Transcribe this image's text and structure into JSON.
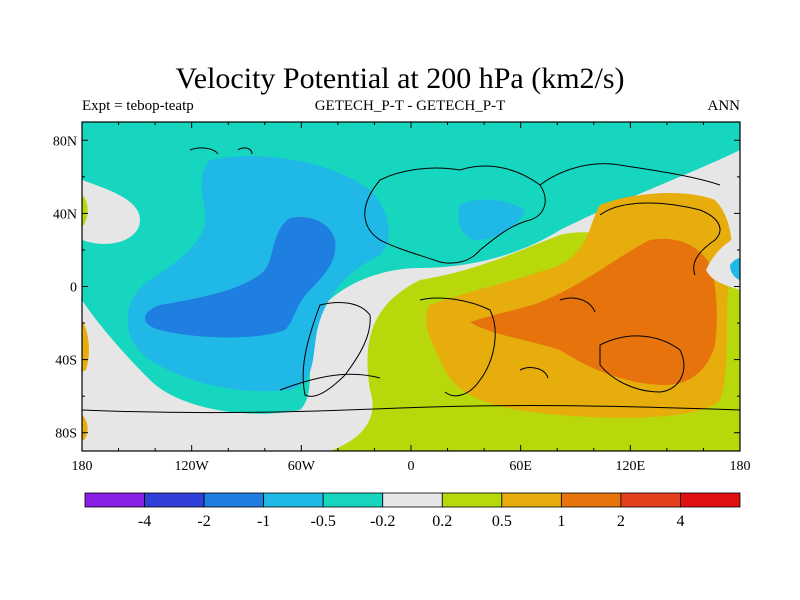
{
  "chart_data": {
    "type": "contour-map",
    "title": "Velocity Potential at 200 hPa (km2/s)",
    "left_string": "Expt = tebop-teatp",
    "center_string": "GETECH_P-T - GETECH_P-T",
    "right_string": "ANN",
    "xaxis": {
      "range": [
        -180,
        180
      ],
      "ticks": [
        -180,
        -120,
        -60,
        0,
        60,
        120,
        180
      ],
      "tick_labels": [
        "180",
        "120W",
        "60W",
        "0",
        "60E",
        "120E",
        "180"
      ]
    },
    "yaxis": {
      "range": [
        -90,
        90
      ],
      "ticks": [
        80,
        40,
        0,
        -40,
        -80
      ],
      "tick_labels": [
        "80N",
        "40N",
        "0",
        "40S",
        "80S"
      ]
    },
    "colorbar": {
      "levels": [
        "-4",
        "-2",
        "-1",
        "-0.5",
        "-0.2",
        "0.2",
        "0.5",
        "1",
        "2",
        "4"
      ],
      "colors": [
        "#8a1fe6",
        "#2f3fd8",
        "#1f7fe0",
        "#20b8e6",
        "#17d6bf",
        "#e6e6e6",
        "#b8d80c",
        "#e6ad0c",
        "#e6730c",
        "#e63f1f",
        "#e01010"
      ]
    },
    "regions": [
      {
        "name": "negative-velocity-potential-pacific-atlantic",
        "value_range": "-0.5 to -1"
      },
      {
        "name": "strong-negative-center-eastern-pacific",
        "value_range": "-1 to -2"
      },
      {
        "name": "positive-velocity-potential-indo-pacific",
        "value_range": "0.5 to 2"
      }
    ]
  }
}
